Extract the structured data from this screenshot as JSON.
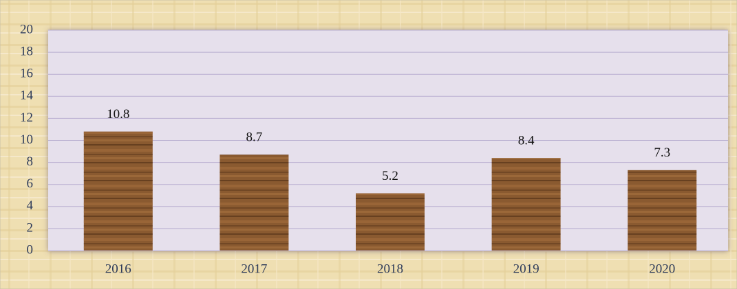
{
  "chart_data": {
    "type": "bar",
    "categories": [
      "2016",
      "2017",
      "2018",
      "2019",
      "2020"
    ],
    "values": [
      10.8,
      8.7,
      5.2,
      8.4,
      7.3
    ],
    "color": "#8a5a30",
    "ylim": [
      0,
      20
    ],
    "yticks": [
      0,
      2,
      4,
      6,
      8,
      10,
      12,
      14,
      16,
      18,
      20
    ],
    "grid": true,
    "data_labels": true
  }
}
